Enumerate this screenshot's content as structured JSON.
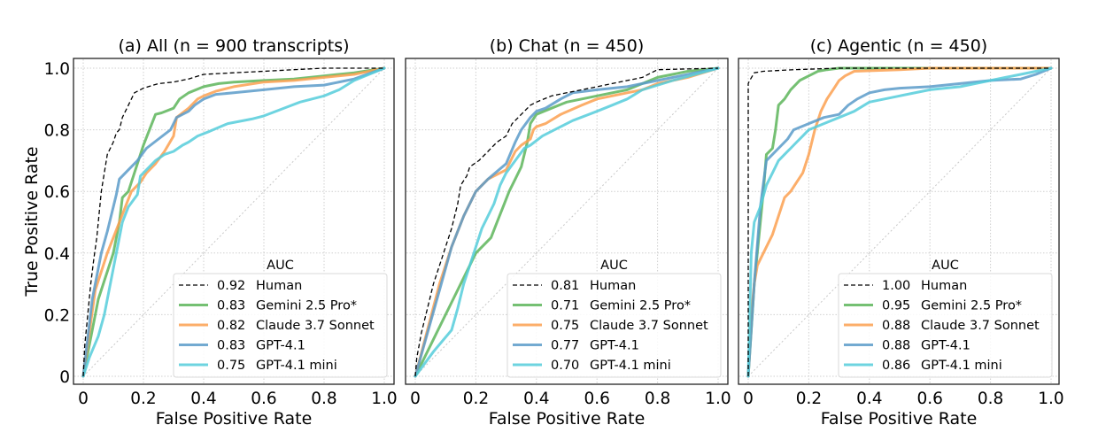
{
  "chart_data": [
    {
      "type": "line",
      "title": "(a) All (n = 900 transcripts)",
      "xlabel": "False Positive Rate",
      "ylabel": "True Positive Rate",
      "xlim": [
        0,
        1
      ],
      "ylim": [
        0,
        1
      ],
      "xticks": [
        "0",
        "0.2",
        "0.4",
        "0.6",
        "0.8",
        "1.0"
      ],
      "yticks": [
        "0",
        "0.2",
        "0.4",
        "0.6",
        "0.8",
        "1.0"
      ],
      "grid": true,
      "legend_title": "AUC",
      "legend_position": "bottom-right",
      "series": [
        {
          "name": "Human",
          "auc": "0.92",
          "style": "dashed",
          "color": "#000000",
          "x": [
            0,
            0.005,
            0.015,
            0.025,
            0.035,
            0.045,
            0.05,
            0.055,
            0.06,
            0.07,
            0.08,
            0.1,
            0.11,
            0.12,
            0.13,
            0.15,
            0.17,
            0.2,
            0.25,
            0.3,
            0.35,
            0.4,
            0.5,
            0.6,
            0.7,
            0.8,
            0.9,
            1.0
          ],
          "y": [
            0,
            0.1,
            0.2,
            0.3,
            0.38,
            0.45,
            0.5,
            0.55,
            0.6,
            0.66,
            0.72,
            0.76,
            0.79,
            0.8,
            0.84,
            0.88,
            0.92,
            0.935,
            0.95,
            0.955,
            0.965,
            0.98,
            0.985,
            0.99,
            0.995,
            1.0,
            1.0,
            1.0
          ]
        },
        {
          "name": "Gemini 2.5 Pro*",
          "auc": "0.83",
          "style": "solid",
          "color": "#5db55a",
          "x": [
            0,
            0.05,
            0.1,
            0.12,
            0.13,
            0.15,
            0.17,
            0.19,
            0.2,
            0.22,
            0.24,
            0.26,
            0.3,
            0.32,
            0.35,
            0.4,
            0.45,
            0.5,
            0.6,
            0.7,
            0.8,
            0.9,
            1.0
          ],
          "y": [
            0,
            0.25,
            0.4,
            0.5,
            0.58,
            0.6,
            0.66,
            0.72,
            0.75,
            0.8,
            0.85,
            0.855,
            0.87,
            0.9,
            0.92,
            0.94,
            0.95,
            0.955,
            0.96,
            0.965,
            0.975,
            0.985,
            1.0
          ]
        },
        {
          "name": "Claude 3.7 Sonnet",
          "auc": "0.82",
          "style": "solid",
          "color": "#fca050",
          "x": [
            0,
            0.04,
            0.08,
            0.1,
            0.12,
            0.14,
            0.16,
            0.19,
            0.21,
            0.24,
            0.27,
            0.3,
            0.31,
            0.35,
            0.38,
            0.4,
            0.44,
            0.5,
            0.6,
            0.7,
            0.8,
            0.9,
            1.0
          ],
          "y": [
            0,
            0.28,
            0.4,
            0.45,
            0.5,
            0.55,
            0.6,
            0.63,
            0.66,
            0.69,
            0.73,
            0.78,
            0.84,
            0.87,
            0.9,
            0.91,
            0.925,
            0.94,
            0.955,
            0.96,
            0.97,
            0.98,
            1.0
          ]
        },
        {
          "name": "GPT-4.1",
          "auc": "0.83",
          "style": "solid",
          "color": "#5b9bc9",
          "x": [
            0,
            0.03,
            0.06,
            0.08,
            0.1,
            0.11,
            0.12,
            0.15,
            0.18,
            0.21,
            0.25,
            0.29,
            0.31,
            0.35,
            0.37,
            0.4,
            0.44,
            0.5,
            0.6,
            0.7,
            0.8,
            0.9,
            1.0
          ],
          "y": [
            0,
            0.25,
            0.4,
            0.47,
            0.55,
            0.59,
            0.64,
            0.67,
            0.7,
            0.74,
            0.77,
            0.8,
            0.84,
            0.86,
            0.88,
            0.9,
            0.915,
            0.92,
            0.93,
            0.94,
            0.945,
            0.965,
            1.0
          ]
        },
        {
          "name": "GPT-4.1 mini",
          "auc": "0.75",
          "style": "solid",
          "color": "#55ccda",
          "x": [
            0,
            0.02,
            0.05,
            0.07,
            0.09,
            0.11,
            0.13,
            0.15,
            0.18,
            0.19,
            0.21,
            0.24,
            0.27,
            0.3,
            0.33,
            0.35,
            0.38,
            0.42,
            0.48,
            0.56,
            0.6,
            0.68,
            0.72,
            0.8,
            0.85,
            0.9,
            1.0
          ],
          "y": [
            0,
            0.06,
            0.13,
            0.2,
            0.3,
            0.4,
            0.5,
            0.55,
            0.59,
            0.65,
            0.67,
            0.7,
            0.72,
            0.73,
            0.75,
            0.76,
            0.78,
            0.795,
            0.82,
            0.835,
            0.845,
            0.875,
            0.89,
            0.91,
            0.93,
            0.96,
            1.0
          ]
        }
      ]
    },
    {
      "type": "line",
      "title": "(b) Chat (n = 450)",
      "xlabel": "False Positive Rate",
      "ylabel": "",
      "xlim": [
        0,
        1
      ],
      "ylim": [
        0,
        1
      ],
      "xticks": [
        "0",
        "0.2",
        "0.4",
        "0.6",
        "0.8",
        "1.0"
      ],
      "yticks": [],
      "grid": true,
      "legend_title": "AUC",
      "legend_position": "bottom-right",
      "series": [
        {
          "name": "Human",
          "auc": "0.81",
          "style": "dashed",
          "color": "#000000",
          "x": [
            0,
            0.005,
            0.02,
            0.04,
            0.06,
            0.08,
            0.1,
            0.12,
            0.14,
            0.15,
            0.17,
            0.18,
            0.21,
            0.24,
            0.27,
            0.3,
            0.32,
            0.35,
            0.38,
            0.4,
            0.45,
            0.5,
            0.55,
            0.6,
            0.7,
            0.75,
            0.8,
            1.0
          ],
          "y": [
            0,
            0.06,
            0.14,
            0.22,
            0.3,
            0.36,
            0.42,
            0.48,
            0.56,
            0.62,
            0.65,
            0.68,
            0.7,
            0.73,
            0.76,
            0.78,
            0.82,
            0.85,
            0.88,
            0.89,
            0.91,
            0.92,
            0.93,
            0.94,
            0.96,
            0.97,
            0.995,
            1.0
          ]
        },
        {
          "name": "Gemini 2.5 Pro*",
          "auc": "0.71",
          "style": "solid",
          "color": "#5db55a",
          "x": [
            0,
            0.1,
            0.2,
            0.25,
            0.27,
            0.29,
            0.31,
            0.33,
            0.35,
            0.36,
            0.37,
            0.38,
            0.4,
            0.45,
            0.5,
            0.55,
            0.6,
            0.7,
            0.75,
            0.8,
            0.9,
            1.0
          ],
          "y": [
            0,
            0.2,
            0.4,
            0.45,
            0.5,
            0.55,
            0.6,
            0.64,
            0.68,
            0.72,
            0.76,
            0.82,
            0.85,
            0.87,
            0.89,
            0.9,
            0.91,
            0.93,
            0.95,
            0.97,
            0.99,
            1.0
          ]
        },
        {
          "name": "Claude 3.7 Sonnet",
          "auc": "0.75",
          "style": "solid",
          "color": "#fca050",
          "x": [
            0,
            0.04,
            0.08,
            0.12,
            0.16,
            0.2,
            0.24,
            0.3,
            0.33,
            0.35,
            0.38,
            0.39,
            0.4,
            0.43,
            0.48,
            0.55,
            0.6,
            0.65,
            0.7,
            0.75,
            0.8,
            0.9,
            1.0
          ],
          "y": [
            0,
            0.15,
            0.3,
            0.42,
            0.52,
            0.6,
            0.64,
            0.67,
            0.73,
            0.75,
            0.77,
            0.8,
            0.81,
            0.82,
            0.85,
            0.88,
            0.9,
            0.91,
            0.92,
            0.93,
            0.95,
            0.97,
            1.0
          ]
        },
        {
          "name": "GPT-4.1",
          "auc": "0.77",
          "style": "solid",
          "color": "#5b9bc9",
          "x": [
            0,
            0.04,
            0.08,
            0.12,
            0.16,
            0.2,
            0.24,
            0.3,
            0.33,
            0.35,
            0.38,
            0.4,
            0.43,
            0.48,
            0.52,
            0.6,
            0.7,
            0.8,
            0.9,
            1.0
          ],
          "y": [
            0,
            0.14,
            0.28,
            0.42,
            0.52,
            0.6,
            0.64,
            0.69,
            0.76,
            0.8,
            0.84,
            0.86,
            0.87,
            0.9,
            0.92,
            0.93,
            0.94,
            0.96,
            0.98,
            1.0
          ]
        },
        {
          "name": "GPT-4.1 mini",
          "auc": "0.70",
          "style": "solid",
          "color": "#55ccda",
          "x": [
            0,
            0.06,
            0.12,
            0.14,
            0.16,
            0.18,
            0.2,
            0.22,
            0.24,
            0.26,
            0.28,
            0.3,
            0.33,
            0.36,
            0.38,
            0.42,
            0.48,
            0.52,
            0.6,
            0.65,
            0.7,
            0.75,
            0.85,
            1.0
          ],
          "y": [
            0,
            0.08,
            0.15,
            0.22,
            0.3,
            0.36,
            0.42,
            0.48,
            0.52,
            0.56,
            0.62,
            0.66,
            0.7,
            0.74,
            0.75,
            0.78,
            0.81,
            0.83,
            0.86,
            0.88,
            0.9,
            0.93,
            0.96,
            1.0
          ]
        }
      ]
    },
    {
      "type": "line",
      "title": "(c) Agentic (n = 450)",
      "xlabel": "False Positive Rate",
      "ylabel": "",
      "xlim": [
        0,
        1
      ],
      "ylim": [
        0,
        1
      ],
      "xticks": [
        "0",
        "0.2",
        "0.4",
        "0.6",
        "0.8",
        "1.0"
      ],
      "yticks": [],
      "grid": true,
      "legend_title": "AUC",
      "legend_position": "bottom-right",
      "series": [
        {
          "name": "Human",
          "auc": "1.00",
          "style": "dashed",
          "color": "#000000",
          "x": [
            0,
            0.0,
            0.005,
            0.02,
            0.05,
            0.15,
            0.3,
            0.5,
            1.0
          ],
          "y": [
            0,
            0.95,
            0.96,
            0.985,
            0.99,
            0.995,
            1.0,
            1.0,
            1.0
          ]
        },
        {
          "name": "Gemini 2.5 Pro*",
          "auc": "0.95",
          "style": "solid",
          "color": "#5db55a",
          "x": [
            0,
            0.02,
            0.04,
            0.05,
            0.06,
            0.08,
            0.09,
            0.1,
            0.12,
            0.14,
            0.17,
            0.2,
            0.23,
            0.26,
            0.3,
            0.35,
            0.45,
            0.6,
            1.0
          ],
          "y": [
            0,
            0.3,
            0.5,
            0.6,
            0.72,
            0.74,
            0.8,
            0.88,
            0.9,
            0.93,
            0.96,
            0.975,
            0.99,
            0.995,
            1.0,
            1.0,
            1.0,
            1.0,
            1.0
          ]
        },
        {
          "name": "Claude 3.7 Sonnet",
          "auc": "0.88",
          "style": "solid",
          "color": "#fca050",
          "x": [
            0,
            0.01,
            0.02,
            0.03,
            0.05,
            0.08,
            0.1,
            0.12,
            0.14,
            0.16,
            0.18,
            0.2,
            0.22,
            0.24,
            0.26,
            0.28,
            0.3,
            0.32,
            0.35,
            0.5,
            0.6,
            1.0
          ],
          "y": [
            0,
            0.2,
            0.3,
            0.36,
            0.4,
            0.46,
            0.52,
            0.58,
            0.6,
            0.63,
            0.66,
            0.72,
            0.8,
            0.86,
            0.9,
            0.93,
            0.96,
            0.975,
            0.99,
            0.995,
            1.0,
            1.0
          ]
        },
        {
          "name": "GPT-4.1",
          "auc": "0.88",
          "style": "solid",
          "color": "#5b9bc9",
          "x": [
            0,
            0.02,
            0.04,
            0.06,
            0.08,
            0.1,
            0.13,
            0.15,
            0.2,
            0.25,
            0.3,
            0.33,
            0.36,
            0.4,
            0.45,
            0.5,
            0.6,
            0.7,
            0.8,
            0.9,
            0.95,
            1.0
          ],
          "y": [
            0,
            0.3,
            0.55,
            0.7,
            0.72,
            0.74,
            0.77,
            0.8,
            0.82,
            0.84,
            0.85,
            0.88,
            0.9,
            0.92,
            0.93,
            0.935,
            0.94,
            0.95,
            0.96,
            0.965,
            0.98,
            1.0
          ]
        },
        {
          "name": "GPT-4.1 mini",
          "auc": "0.86",
          "style": "solid",
          "color": "#55ccda",
          "x": [
            0,
            0.01,
            0.02,
            0.04,
            0.06,
            0.08,
            0.1,
            0.12,
            0.14,
            0.16,
            0.18,
            0.2,
            0.25,
            0.3,
            0.35,
            0.4,
            0.45,
            0.5,
            0.6,
            0.7,
            0.8,
            0.85,
            0.9,
            1.0
          ],
          "y": [
            0,
            0.4,
            0.5,
            0.55,
            0.62,
            0.66,
            0.7,
            0.72,
            0.74,
            0.76,
            0.78,
            0.8,
            0.82,
            0.84,
            0.86,
            0.89,
            0.9,
            0.91,
            0.93,
            0.94,
            0.96,
            0.97,
            0.98,
            1.0
          ]
        }
      ]
    }
  ]
}
